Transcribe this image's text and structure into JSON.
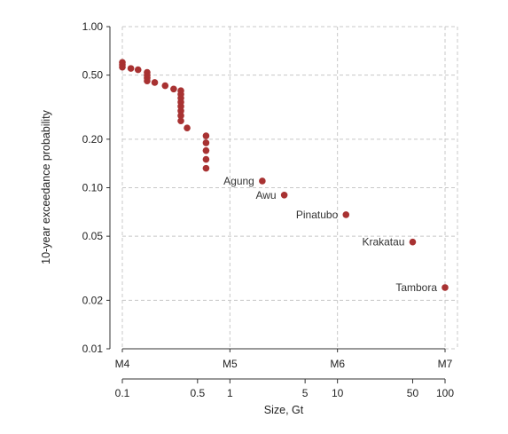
{
  "chart_data": {
    "type": "scatter",
    "title": "",
    "xlabel": "Size, Gt",
    "ylabel": "10-year exceedance probability",
    "x_scale": "log",
    "y_scale": "log",
    "xlim": [
      0.1,
      100
    ],
    "ylim": [
      0.01,
      1.0
    ],
    "grid": true,
    "x_ticks": [
      {
        "value": 0.1,
        "label": "0.1"
      },
      {
        "value": 0.5,
        "label": "0.5"
      },
      {
        "value": 1,
        "label": "1"
      },
      {
        "value": 5,
        "label": "5"
      },
      {
        "value": 10,
        "label": "10"
      },
      {
        "value": 50,
        "label": "50"
      },
      {
        "value": 100,
        "label": "100"
      }
    ],
    "magnitude_ticks": [
      {
        "value": 0.1,
        "label": "M4"
      },
      {
        "value": 1,
        "label": "M5"
      },
      {
        "value": 10,
        "label": "M6"
      },
      {
        "value": 100,
        "label": "M7"
      }
    ],
    "y_ticks": [
      {
        "value": 0.01,
        "label": "0.01"
      },
      {
        "value": 0.02,
        "label": "0.02"
      },
      {
        "value": 0.05,
        "label": "0.05"
      },
      {
        "value": 0.1,
        "label": "0.10"
      },
      {
        "value": 0.2,
        "label": "0.20"
      },
      {
        "value": 0.5,
        "label": "0.50"
      },
      {
        "value": 1.0,
        "label": "1.00"
      }
    ],
    "series": [
      {
        "color": "#a83232",
        "points": [
          {
            "x": 0.1,
            "y": 0.6
          },
          {
            "x": 0.1,
            "y": 0.58
          },
          {
            "x": 0.1,
            "y": 0.56
          },
          {
            "x": 0.12,
            "y": 0.55
          },
          {
            "x": 0.14,
            "y": 0.54
          },
          {
            "x": 0.17,
            "y": 0.52
          },
          {
            "x": 0.17,
            "y": 0.5
          },
          {
            "x": 0.17,
            "y": 0.48
          },
          {
            "x": 0.17,
            "y": 0.46
          },
          {
            "x": 0.2,
            "y": 0.45
          },
          {
            "x": 0.25,
            "y": 0.43
          },
          {
            "x": 0.3,
            "y": 0.41
          },
          {
            "x": 0.35,
            "y": 0.4
          },
          {
            "x": 0.35,
            "y": 0.38
          },
          {
            "x": 0.35,
            "y": 0.36
          },
          {
            "x": 0.35,
            "y": 0.34
          },
          {
            "x": 0.35,
            "y": 0.32
          },
          {
            "x": 0.35,
            "y": 0.3
          },
          {
            "x": 0.35,
            "y": 0.28
          },
          {
            "x": 0.35,
            "y": 0.26
          },
          {
            "x": 0.4,
            "y": 0.235
          },
          {
            "x": 0.6,
            "y": 0.21
          },
          {
            "x": 0.6,
            "y": 0.19
          },
          {
            "x": 0.6,
            "y": 0.17
          },
          {
            "x": 0.6,
            "y": 0.15
          },
          {
            "x": 0.6,
            "y": 0.132
          },
          {
            "x": 2,
            "y": 0.11,
            "label": "Agung"
          },
          {
            "x": 3.2,
            "y": 0.09,
            "label": "Awu"
          },
          {
            "x": 12,
            "y": 0.068,
            "label": "Pinatubo"
          },
          {
            "x": 50,
            "y": 0.046,
            "label": "Krakatau"
          },
          {
            "x": 100,
            "y": 0.024,
            "label": "Tambora"
          }
        ]
      }
    ]
  }
}
